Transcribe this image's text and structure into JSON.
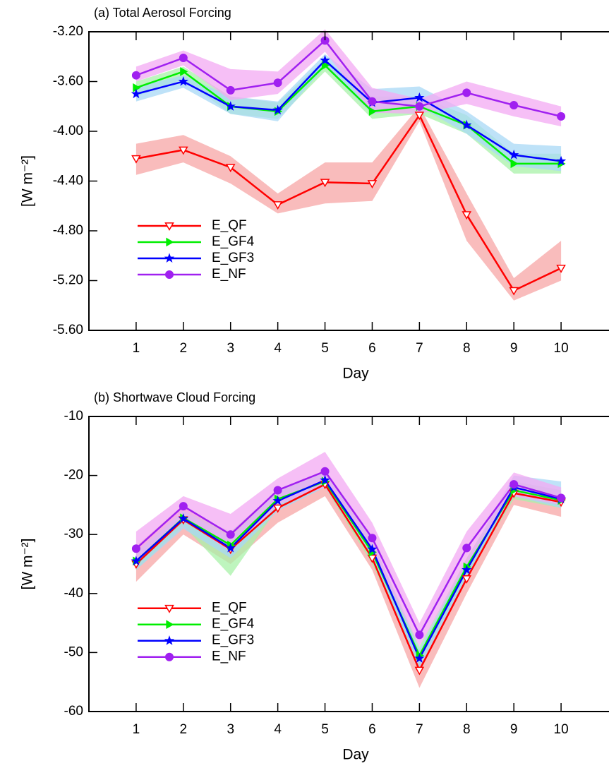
{
  "chart_data": [
    {
      "type": "line",
      "title": "(a) Total Aerosol Forcing",
      "x_label": "Day",
      "y_label": "[W m⁻²]",
      "x": [
        1,
        2,
        3,
        4,
        5,
        6,
        7,
        8,
        9,
        10
      ],
      "xlim": [
        0,
        11
      ],
      "xticks": [
        1,
        2,
        3,
        4,
        5,
        6,
        7,
        8,
        9,
        10
      ],
      "ylim": [
        -5.6,
        -3.2
      ],
      "yticks": [
        {
          "value": -5.6,
          "label": "-5.60"
        },
        {
          "value": -5.2,
          "label": "-5.20"
        },
        {
          "value": -4.8,
          "label": "-4.80"
        },
        {
          "value": -4.4,
          "label": "-4.40"
        },
        {
          "value": -4.0,
          "label": "-4.00"
        },
        {
          "value": -3.6,
          "label": "-3.60"
        },
        {
          "value": -3.2,
          "label": "-3.20"
        }
      ],
      "legend": "lower left",
      "series": [
        {
          "name": "E_QF",
          "color": "#ff0000",
          "band_color": "#f7a6a6",
          "marker": "triangle-down",
          "values": [
            -4.22,
            -4.15,
            -4.29,
            -4.59,
            -4.41,
            -4.42,
            -3.87,
            -4.67,
            -5.28,
            -5.1
          ],
          "lower": [
            -4.35,
            -4.25,
            -4.42,
            -4.66,
            -4.58,
            -4.56,
            -3.92,
            -4.88,
            -5.36,
            -5.2
          ],
          "upper": [
            -4.1,
            -4.03,
            -4.2,
            -4.5,
            -4.25,
            -4.25,
            -3.8,
            -4.5,
            -5.18,
            -4.88
          ]
        },
        {
          "name": "E_GF4",
          "color": "#00ee00",
          "band_color": "#a8f2a8",
          "marker": "triangle-right",
          "values": [
            -3.65,
            -3.52,
            -3.8,
            -3.84,
            -3.47,
            -3.84,
            -3.8,
            -3.95,
            -4.26,
            -4.26
          ],
          "lower": [
            -3.72,
            -3.58,
            -3.86,
            -3.9,
            -3.52,
            -3.9,
            -3.86,
            -4.02,
            -4.34,
            -4.34
          ],
          "upper": [
            -3.6,
            -3.48,
            -3.72,
            -3.77,
            -3.42,
            -3.72,
            -3.72,
            -3.87,
            -4.18,
            -4.18
          ]
        },
        {
          "name": "E_GF3",
          "color": "#0000ff",
          "band_color": "#a8d8f5",
          "marker": "star",
          "values": [
            -3.7,
            -3.6,
            -3.8,
            -3.83,
            -3.43,
            -3.77,
            -3.73,
            -3.95,
            -4.19,
            -4.24
          ],
          "lower": [
            -3.76,
            -3.65,
            -3.86,
            -3.92,
            -3.48,
            -3.86,
            -3.8,
            -4.02,
            -4.28,
            -4.32
          ],
          "upper": [
            -3.64,
            -3.55,
            -3.72,
            -3.76,
            -3.38,
            -3.66,
            -3.64,
            -3.84,
            -4.1,
            -4.12
          ]
        },
        {
          "name": "E_NF",
          "color": "#a020f0",
          "band_color": "#f3aaf3",
          "marker": "circle",
          "values": [
            -3.55,
            -3.41,
            -3.67,
            -3.61,
            -3.27,
            -3.76,
            -3.8,
            -3.69,
            -3.79,
            -3.88
          ],
          "lower": [
            -3.6,
            -3.47,
            -3.75,
            -3.7,
            -3.36,
            -3.85,
            -3.86,
            -3.78,
            -3.88,
            -3.96
          ],
          "upper": [
            -3.48,
            -3.35,
            -3.5,
            -3.52,
            -3.18,
            -3.65,
            -3.74,
            -3.6,
            -3.7,
            -3.8
          ]
        }
      ]
    },
    {
      "type": "line",
      "title": "(b) Shortwave Cloud Forcing",
      "x_label": "Day",
      "y_label": "[W m⁻²]",
      "x": [
        1,
        2,
        3,
        4,
        5,
        6,
        7,
        8,
        9,
        10
      ],
      "xlim": [
        0,
        11
      ],
      "xticks": [
        1,
        2,
        3,
        4,
        5,
        6,
        7,
        8,
        9,
        10
      ],
      "ylim": [
        -60,
        -10
      ],
      "yticks": [
        -60,
        -50,
        -40,
        -30,
        -20,
        -10
      ],
      "legend": "lower left",
      "series": [
        {
          "name": "E_QF",
          "color": "#ff0000",
          "band_color": "#f7a6a6",
          "marker": "triangle-down",
          "values": [
            -35.0,
            -27.5,
            -32.5,
            -25.5,
            -21.5,
            -34.0,
            -53.0,
            -37.5,
            -23.0,
            -24.5
          ],
          "lower": [
            -38,
            -30,
            -35,
            -28,
            -23.5,
            -36,
            -56,
            -40,
            -25,
            -27
          ],
          "upper": [
            -32,
            -25,
            -30,
            -23,
            -19,
            -31,
            -50,
            -34,
            -21,
            -22.5
          ]
        },
        {
          "name": "E_GF4",
          "color": "#00ee00",
          "band_color": "#a8f2a8",
          "marker": "triangle-right",
          "values": [
            -34.5,
            -27.2,
            -31.8,
            -24.0,
            -21.0,
            -33.0,
            -50.5,
            -35.5,
            -22.5,
            -24.2
          ],
          "lower": [
            -36,
            -28.5,
            -37,
            -25.5,
            -22,
            -35,
            -52,
            -37,
            -24,
            -25.5
          ],
          "upper": [
            -33,
            -26,
            -29.5,
            -22.5,
            -19.5,
            -31,
            -49,
            -34,
            -21,
            -22.5
          ]
        },
        {
          "name": "E_GF3",
          "color": "#0000ff",
          "band_color": "#a8d8f5",
          "marker": "star",
          "values": [
            -34.5,
            -27.3,
            -32.3,
            -24.3,
            -20.8,
            -32.5,
            -51.0,
            -36.0,
            -22.0,
            -24.0
          ],
          "lower": [
            -36,
            -29,
            -34,
            -26,
            -22,
            -34,
            -52.5,
            -37.5,
            -23.5,
            -25.5
          ],
          "upper": [
            -33,
            -26,
            -30.5,
            -22.5,
            -19.5,
            -31,
            -49.5,
            -34.5,
            -20,
            -21
          ]
        },
        {
          "name": "E_NF",
          "color": "#a020f0",
          "band_color": "#f3aaf3",
          "marker": "circle",
          "values": [
            -32.4,
            -25.2,
            -30.0,
            -22.5,
            -19.3,
            -30.6,
            -47.0,
            -32.3,
            -21.5,
            -23.8
          ],
          "lower": [
            -35,
            -27.5,
            -33,
            -25,
            -22,
            -33,
            -49,
            -35,
            -23.5,
            -25
          ],
          "upper": [
            -29.5,
            -23.5,
            -26.5,
            -20.5,
            -16,
            -28,
            -45,
            -29.5,
            -19.5,
            -22
          ]
        }
      ]
    }
  ]
}
